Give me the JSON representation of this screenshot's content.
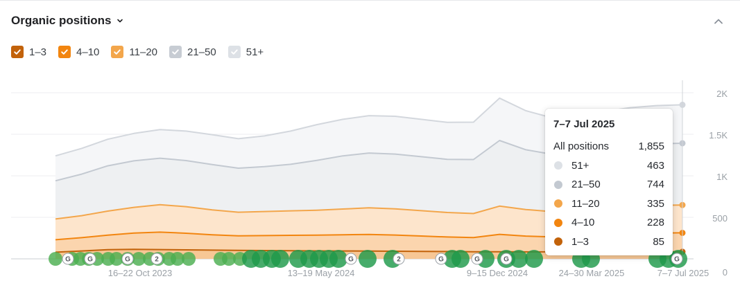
{
  "header": {
    "title": "Organic positions"
  },
  "legend": [
    {
      "label": "1–3",
      "color": "#c2620a",
      "checked": true
    },
    {
      "label": "4–10",
      "color": "#f2850f",
      "checked": true
    },
    {
      "label": "11–20",
      "color": "#f3a64b",
      "checked": true
    },
    {
      "label": "21–50",
      "color": "#c7ccd3",
      "checked": true
    },
    {
      "label": "51+",
      "color": "#dde1e6",
      "checked": true
    }
  ],
  "tooltip": {
    "date": "7–7 Jul 2025",
    "total_label": "All positions",
    "total_value": "1,855",
    "rows": [
      {
        "label": "51+",
        "value": "463",
        "color": "#dde1e6"
      },
      {
        "label": "21–50",
        "value": "744",
        "color": "#c3c9d1"
      },
      {
        "label": "11–20",
        "value": "335",
        "color": "#f3a64b"
      },
      {
        "label": "4–10",
        "value": "228",
        "color": "#f2850f"
      },
      {
        "label": "1–3",
        "value": "85",
        "color": "#c2620a"
      }
    ]
  },
  "chart_data": {
    "type": "area",
    "x_tick_labels": [
      "16–22 Oct 2023",
      "13–19 May 2024",
      "9–15 Dec 2024",
      "24–30 Mar 2025",
      "7–7 Jul 2025"
    ],
    "y_tick_labels": [
      "0",
      "500",
      "1K",
      "1.5K",
      "2K"
    ],
    "ylim": [
      0,
      2000
    ],
    "stacked": true,
    "x": [
      "2023-07",
      "2023-08",
      "2023-09",
      "2023-10",
      "2023-11",
      "2023-12",
      "2024-01",
      "2024-02",
      "2024-03",
      "2024-04",
      "2024-05",
      "2024-06",
      "2024-07",
      "2024-08",
      "2024-09",
      "2024-10",
      "2024-11",
      "2024-12",
      "2025-01",
      "2025-02",
      "2025-03",
      "2025-04",
      "2025-05",
      "2025-06",
      "2025-07"
    ],
    "series": [
      {
        "name": "1–3",
        "color": "#c2620a",
        "values": [
          80,
          95,
          110,
          115,
          112,
          108,
          105,
          102,
          100,
          98,
          96,
          95,
          94,
          92,
          90,
          88,
          86,
          85,
          84,
          84,
          84,
          85,
          85,
          85,
          85
        ]
      },
      {
        "name": "4–10",
        "color": "#f2850f",
        "values": [
          150,
          160,
          175,
          195,
          210,
          200,
          185,
          175,
          180,
          185,
          190,
          195,
          200,
          195,
          185,
          175,
          170,
          210,
          190,
          180,
          185,
          200,
          215,
          225,
          228
        ]
      },
      {
        "name": "11–20",
        "color": "#f3a64b",
        "values": [
          250,
          265,
          290,
          310,
          330,
          320,
          300,
          285,
          290,
          295,
          300,
          310,
          320,
          315,
          305,
          295,
          290,
          340,
          320,
          305,
          310,
          320,
          330,
          335,
          335
        ]
      },
      {
        "name": "21–50",
        "color": "#c7ccd3",
        "values": [
          460,
          500,
          545,
          560,
          560,
          555,
          545,
          530,
          540,
          560,
          600,
          640,
          660,
          660,
          650,
          640,
          650,
          790,
          720,
          690,
          700,
          720,
          735,
          740,
          744
        ]
      },
      {
        "name": "51+",
        "color": "#dde1e6",
        "values": [
          300,
          310,
          320,
          330,
          345,
          355,
          360,
          355,
          370,
          400,
          430,
          440,
          450,
          455,
          450,
          445,
          450,
          510,
          470,
          440,
          440,
          450,
          455,
          460,
          463
        ]
      }
    ],
    "event_markers": [
      "G",
      "G",
      "G",
      "2",
      "G",
      "2",
      "G",
      "G",
      "G",
      "G"
    ]
  }
}
